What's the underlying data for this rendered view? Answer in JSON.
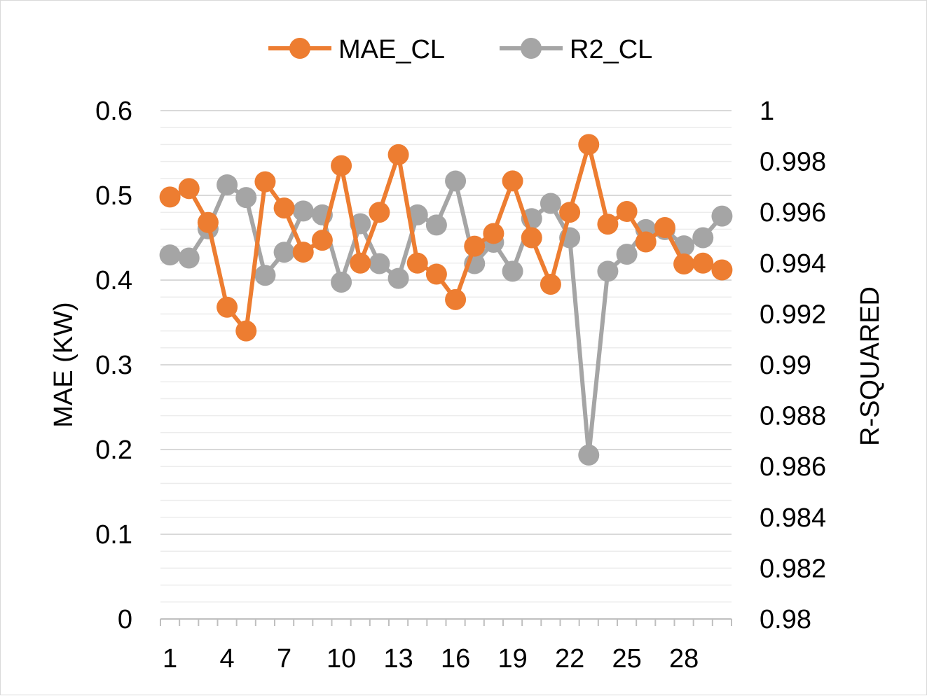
{
  "chart_data": {
    "type": "line",
    "title": "",
    "xlabel": "",
    "ylabel": "MAE (KW)",
    "y2label": "R-SQUARED",
    "x": [
      1,
      2,
      3,
      4,
      5,
      6,
      7,
      8,
      9,
      10,
      11,
      12,
      13,
      14,
      15,
      16,
      17,
      18,
      19,
      20,
      21,
      22,
      23,
      24,
      25,
      26,
      27,
      28,
      29,
      30
    ],
    "x_tick_labels": [
      "1",
      "4",
      "7",
      "10",
      "13",
      "16",
      "19",
      "22",
      "25",
      "28"
    ],
    "y_ticks": [
      "0",
      "0.1",
      "0.2",
      "0.3",
      "0.4",
      "0.5",
      "0.6"
    ],
    "y2_ticks": [
      "0.98",
      "0.982",
      "0.984",
      "0.986",
      "0.988",
      "0.99",
      "0.992",
      "0.994",
      "0.996",
      "0.998",
      "1"
    ],
    "ylim": [
      0,
      0.6
    ],
    "y2lim": [
      0.98,
      1.0
    ],
    "grid": true,
    "legend_position": "top",
    "series": [
      {
        "name": "MAE_CL",
        "axis": "left",
        "color": "#ED7D31",
        "values": [
          0.498,
          0.508,
          0.468,
          0.368,
          0.34,
          0.516,
          0.485,
          0.433,
          0.447,
          0.535,
          0.42,
          0.48,
          0.548,
          0.42,
          0.407,
          0.377,
          0.44,
          0.455,
          0.517,
          0.45,
          0.395,
          0.48,
          0.56,
          0.466,
          0.481,
          0.445,
          0.462,
          0.419,
          0.42,
          0.412
        ]
      },
      {
        "name": "R2_CL",
        "axis": "right",
        "color": "#A5A5A5",
        "values": [
          0.99432,
          0.9942,
          0.99535,
          0.99708,
          0.99658,
          0.99352,
          0.99443,
          0.99605,
          0.9959,
          0.99325,
          0.99555,
          0.99398,
          0.9934,
          0.9959,
          0.9955,
          0.99723,
          0.99398,
          0.99482,
          0.99368,
          0.99575,
          0.99635,
          0.995,
          0.98645,
          0.99368,
          0.99435,
          0.99532,
          0.99532,
          0.99468,
          0.995,
          0.99585
        ]
      }
    ]
  }
}
